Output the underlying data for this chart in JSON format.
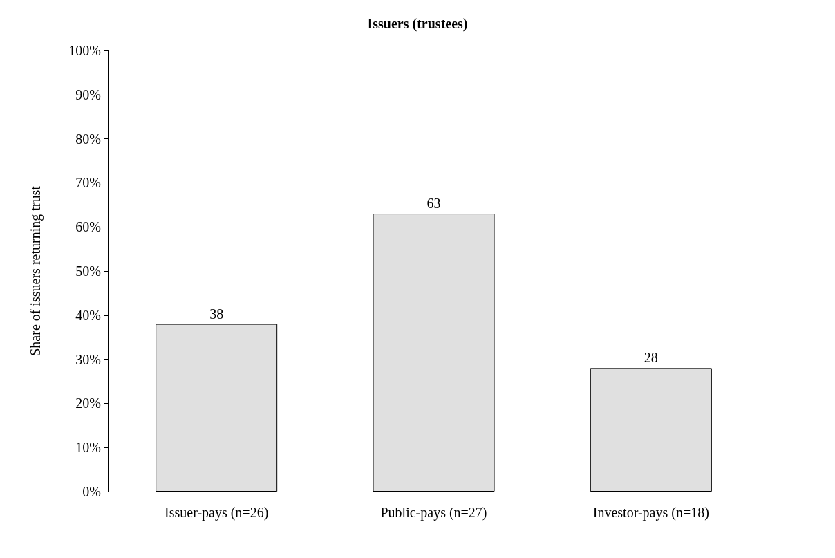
{
  "chart_data": {
    "type": "bar",
    "title": "Issuers (trustees)",
    "ylabel": "Share of issuers returning trust",
    "categories": [
      "Issuer-pays (n=26)",
      "Public-pays (n=27)",
      "Investor-pays (n=18)"
    ],
    "values": [
      38,
      63,
      28
    ],
    "color": "#e0e0e0",
    "data_labels": true,
    "grid": false,
    "ylim": [
      0,
      100
    ],
    "yticks": [
      {
        "value": 0,
        "label": "0%"
      },
      {
        "value": 10,
        "label": "10%"
      },
      {
        "value": 20,
        "label": "20%"
      },
      {
        "value": 30,
        "label": "30%"
      },
      {
        "value": 40,
        "label": "40%"
      },
      {
        "value": 50,
        "label": "50%"
      },
      {
        "value": 60,
        "label": "60%"
      },
      {
        "value": 70,
        "label": "70%"
      },
      {
        "value": 80,
        "label": "80%"
      },
      {
        "value": 90,
        "label": "90%"
      },
      {
        "value": 100,
        "label": "100%"
      }
    ]
  }
}
